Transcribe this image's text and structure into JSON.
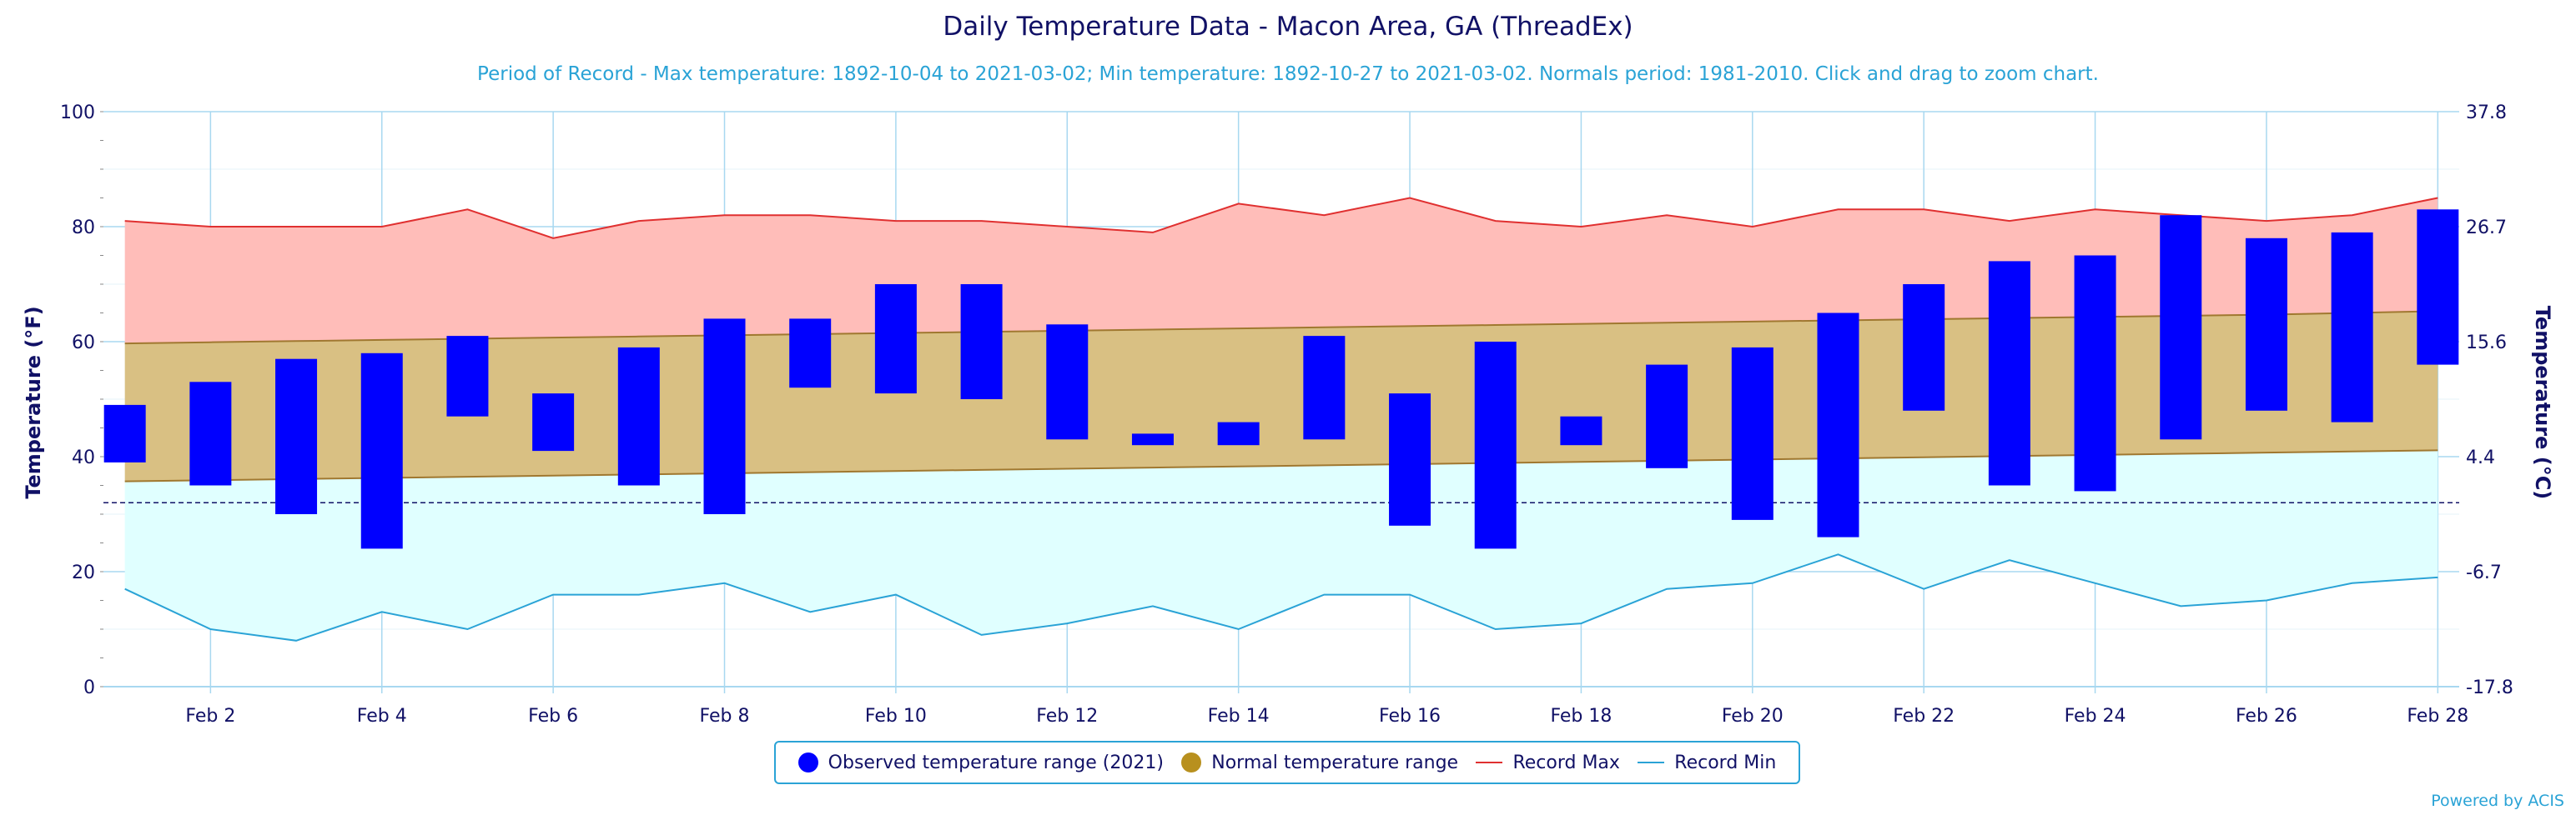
{
  "title": "Daily Temperature Data - Macon Area, GA (ThreadEx)",
  "subtitle": "Period of Record - Max temperature: 1892-10-04 to 2021-03-02; Min temperature: 1892-10-27 to 2021-03-02. Normals period: 1981-2010. Click and drag to zoom chart.",
  "credit": "Powered by ACIS",
  "colors": {
    "observed": "#0000ff",
    "normal_fill": "#d9c083",
    "normal_line": "#a07830",
    "record_max_fill": "#ffbdb9",
    "record_max_line": "#e03030",
    "record_min_fill": "#e0ffff",
    "record_min_line": "#2aa3d6",
    "axis_text": "#111166",
    "grid": "#a8d8f0"
  },
  "legend": [
    {
      "label": "Observed temperature range (2021)",
      "symbol": "circle",
      "color": "#0000ff"
    },
    {
      "label": "Normal temperature range",
      "symbol": "circle",
      "color": "#b8901e"
    },
    {
      "label": "Record Max",
      "symbol": "line",
      "color": "#e03030"
    },
    {
      "label": "Record Min",
      "symbol": "line",
      "color": "#2aa3d6"
    }
  ],
  "chart_data": {
    "type": "bar",
    "title": "Daily Temperature Data - Macon Area, GA (ThreadEx)",
    "ylabel": "Temperature (°F)",
    "y2label": "Temperature (°C)",
    "ylim": [
      0,
      100
    ],
    "yticks": [
      0,
      20,
      40,
      60,
      80,
      100
    ],
    "y2ticks": [
      "-17.8",
      "-6.7",
      "4.4",
      "15.6",
      "26.7",
      "37.8"
    ],
    "freezing_line": 32,
    "x_days": [
      1,
      2,
      3,
      4,
      5,
      6,
      7,
      8,
      9,
      10,
      11,
      12,
      13,
      14,
      15,
      16,
      17,
      18,
      19,
      20,
      21,
      22,
      23,
      24,
      25,
      26,
      27,
      28
    ],
    "x_tick_labels": [
      "Feb 2",
      "Feb 4",
      "Feb 6",
      "Feb 8",
      "Feb 10",
      "Feb 12",
      "Feb 14",
      "Feb 16",
      "Feb 18",
      "Feb 20",
      "Feb 22",
      "Feb 24",
      "Feb 26",
      "Feb 28"
    ],
    "x_tick_days": [
      2,
      4,
      6,
      8,
      10,
      12,
      14,
      16,
      18,
      20,
      22,
      24,
      26,
      28
    ],
    "observed_high": [
      49,
      53,
      57,
      58,
      61,
      51,
      59,
      64,
      64,
      70,
      70,
      63,
      44,
      46,
      61,
      51,
      60,
      47,
      56,
      59,
      65,
      70,
      74,
      75,
      82,
      78,
      79,
      83
    ],
    "observed_low": [
      39,
      35,
      30,
      24,
      47,
      41,
      35,
      30,
      52,
      51,
      50,
      43,
      42,
      42,
      43,
      28,
      24,
      42,
      38,
      29,
      26,
      48,
      35,
      34,
      43,
      48,
      46,
      56
    ],
    "normal_high": [
      59.7,
      59.9,
      60.1,
      60.3,
      60.5,
      60.7,
      60.9,
      61.1,
      61.3,
      61.5,
      61.7,
      61.9,
      62.1,
      62.3,
      62.5,
      62.7,
      62.9,
      63.1,
      63.3,
      63.5,
      63.7,
      63.9,
      64.1,
      64.3,
      64.5,
      64.7,
      65.0,
      65.3
    ],
    "normal_low": [
      35.7,
      35.9,
      36.1,
      36.3,
      36.5,
      36.7,
      36.9,
      37.1,
      37.3,
      37.5,
      37.7,
      37.9,
      38.1,
      38.3,
      38.5,
      38.7,
      38.9,
      39.1,
      39.3,
      39.5,
      39.7,
      39.9,
      40.1,
      40.3,
      40.5,
      40.7,
      40.9,
      41.1
    ],
    "record_max": [
      81,
      80,
      80,
      80,
      83,
      78,
      81,
      82,
      82,
      81,
      81,
      80,
      79,
      84,
      82,
      85,
      81,
      80,
      82,
      80,
      83,
      83,
      81,
      83,
      82,
      81,
      82,
      85
    ],
    "record_min": [
      17,
      10,
      8,
      13,
      10,
      16,
      16,
      18,
      13,
      16,
      9,
      11,
      14,
      10,
      16,
      16,
      10,
      11,
      17,
      18,
      23,
      17,
      22,
      18,
      14,
      15,
      18,
      19
    ],
    "series": [
      {
        "name": "Observed temperature range (2021)"
      },
      {
        "name": "Normal temperature range"
      },
      {
        "name": "Record Max"
      },
      {
        "name": "Record Min"
      }
    ]
  }
}
